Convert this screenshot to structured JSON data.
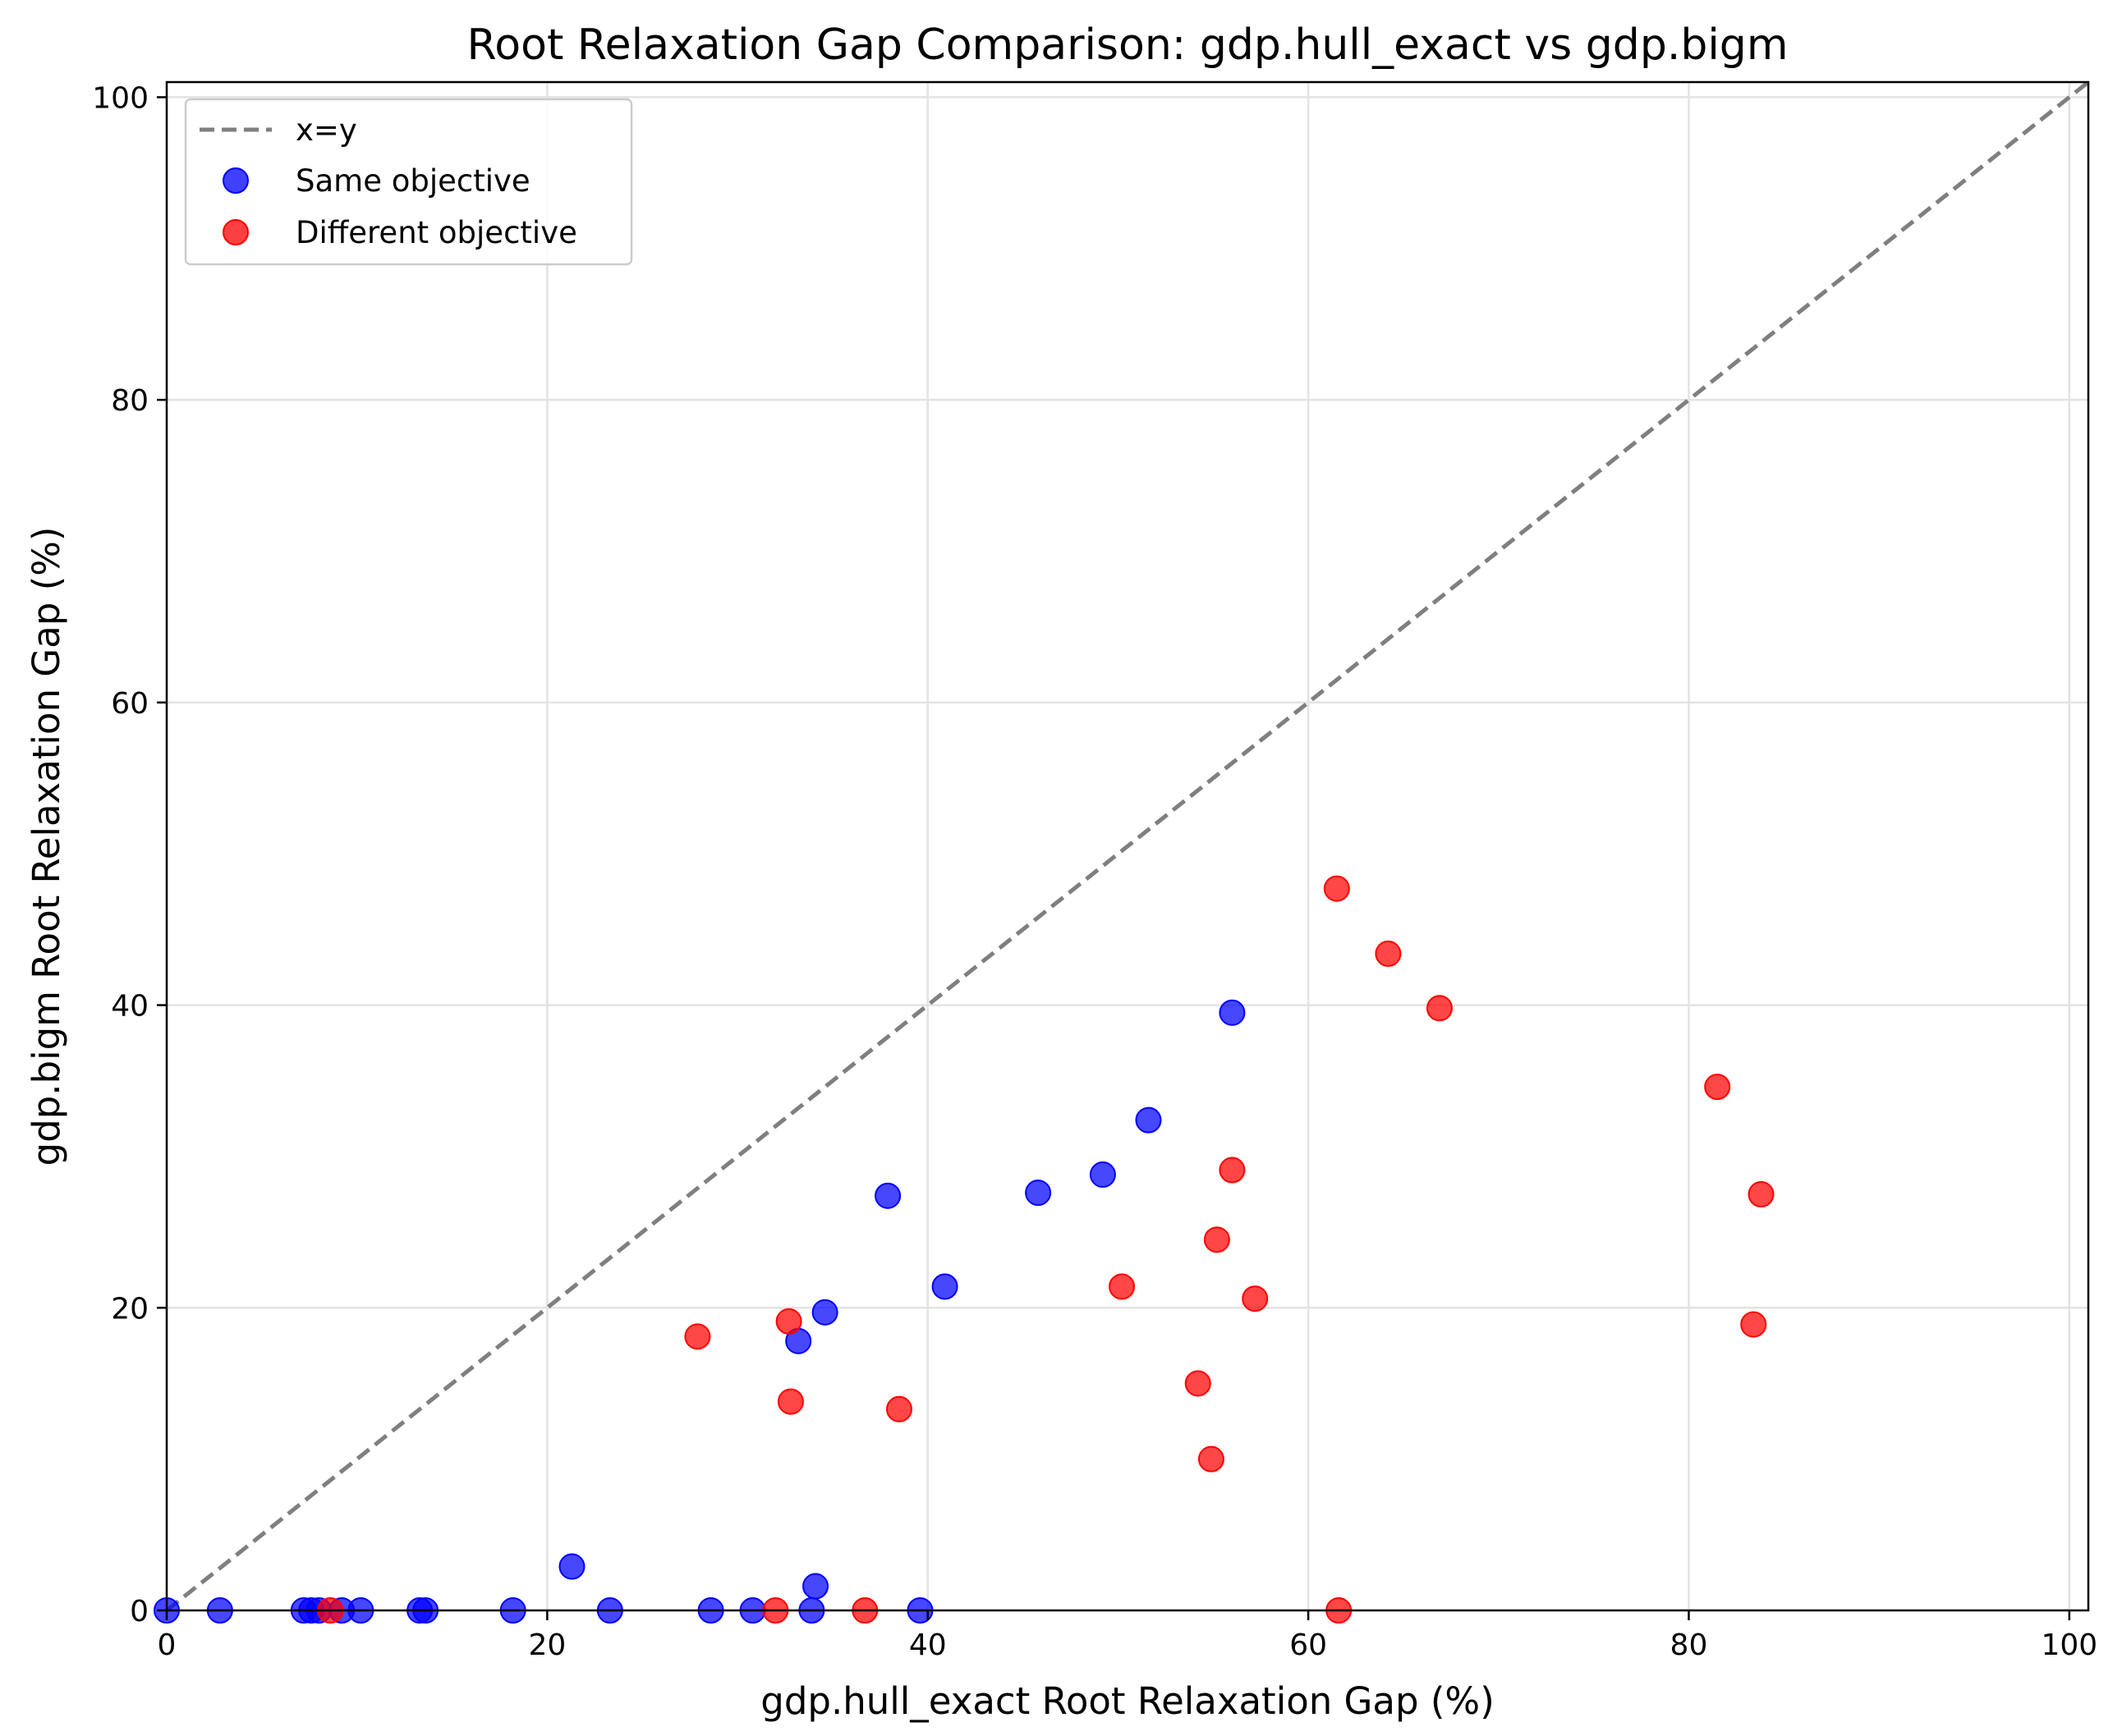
{
  "chart_data": {
    "type": "scatter",
    "title": "Root Relaxation Gap Comparison: gdp.hull_exact vs gdp.bigm",
    "xlabel": "gdp.hull_exact Root Relaxation Gap (%)",
    "ylabel": "gdp.bigm Root Relaxation Gap (%)",
    "xlim": [
      0,
      101
    ],
    "ylim": [
      0,
      101
    ],
    "xticks": [
      0,
      20,
      40,
      60,
      80,
      100
    ],
    "yticks": [
      0,
      20,
      40,
      60,
      80,
      100
    ],
    "grid": true,
    "legend_position": "upper-left",
    "reference_line": {
      "label": "x=y",
      "style": "dashed",
      "color": "#7f7f7f",
      "from": [
        0,
        0
      ],
      "to": [
        101,
        101
      ]
    },
    "series": [
      {
        "name": "Same objective",
        "color": "#0000ff",
        "points": [
          [
            0,
            0
          ],
          [
            2.8,
            0
          ],
          [
            7.2,
            0
          ],
          [
            7.6,
            0
          ],
          [
            8.0,
            0
          ],
          [
            9.2,
            0
          ],
          [
            10.2,
            0
          ],
          [
            13.3,
            0
          ],
          [
            13.6,
            0
          ],
          [
            18.2,
            0
          ],
          [
            21.3,
            2.9
          ],
          [
            23.3,
            0
          ],
          [
            28.6,
            0
          ],
          [
            30.8,
            0
          ],
          [
            33.2,
            17.8
          ],
          [
            33.9,
            0
          ],
          [
            34.1,
            1.6
          ],
          [
            34.6,
            19.7
          ],
          [
            37.9,
            27.4
          ],
          [
            39.6,
            0
          ],
          [
            40.9,
            21.4
          ],
          [
            45.8,
            27.6
          ],
          [
            49.2,
            28.8
          ],
          [
            51.6,
            32.4
          ],
          [
            56.0,
            39.5
          ]
        ]
      },
      {
        "name": "Different objective",
        "color": "#ff0000",
        "points": [
          [
            8.6,
            0
          ],
          [
            27.9,
            18.1
          ],
          [
            32.0,
            0
          ],
          [
            32.7,
            19.1
          ],
          [
            32.8,
            13.8
          ],
          [
            36.7,
            0
          ],
          [
            38.5,
            13.3
          ],
          [
            50.2,
            21.4
          ],
          [
            54.2,
            15.0
          ],
          [
            54.9,
            10.0
          ],
          [
            55.2,
            24.5
          ],
          [
            56.0,
            29.1
          ],
          [
            57.2,
            20.6
          ],
          [
            61.5,
            47.7
          ],
          [
            61.6,
            0
          ],
          [
            64.2,
            43.4
          ],
          [
            66.9,
            39.8
          ],
          [
            81.5,
            34.6
          ],
          [
            83.4,
            18.9
          ],
          [
            83.8,
            27.5
          ]
        ]
      }
    ]
  }
}
